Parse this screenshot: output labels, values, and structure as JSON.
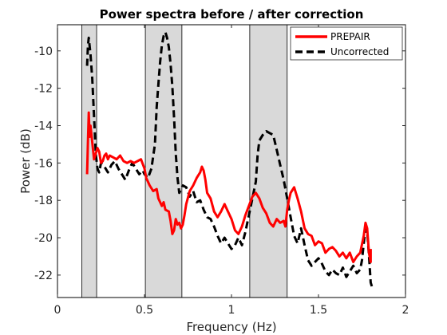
{
  "chart_data": {
    "type": "line",
    "title": "Power spectra before / after correction",
    "xlabel": "Frequency (Hz)",
    "ylabel": "Power (dB)",
    "xlim": [
      0,
      2
    ],
    "ylim": [
      -23.2,
      -8.6
    ],
    "x_ticks": [
      0,
      0.5,
      1,
      1.5,
      2
    ],
    "x_tick_labels": [
      "0",
      "0.5",
      "1",
      "1.5",
      "2"
    ],
    "y_ticks": [
      -10,
      -12,
      -14,
      -16,
      -18,
      -20,
      -22
    ],
    "y_tick_labels": [
      "-10",
      "-12",
      "-14",
      "-16",
      "-18",
      "-20",
      "-22"
    ],
    "grid": false,
    "legend_position": "top-right",
    "shaded_bands": [
      {
        "x0": 0.14,
        "x1": 0.225
      },
      {
        "x0": 0.505,
        "x1": 0.715
      },
      {
        "x0": 1.105,
        "x1": 1.32
      }
    ],
    "series": [
      {
        "name": "PREPAIR",
        "color": "#ff0000",
        "style": "solid",
        "points": [
          [
            0.17,
            -16.6
          ],
          [
            0.175,
            -14.8
          ],
          [
            0.18,
            -13.3
          ],
          [
            0.185,
            -14.6
          ],
          [
            0.19,
            -14.0
          ],
          [
            0.2,
            -14.9
          ],
          [
            0.21,
            -15.8
          ],
          [
            0.22,
            -15.5
          ],
          [
            0.23,
            -15.2
          ],
          [
            0.24,
            -15.4
          ],
          [
            0.25,
            -16.0
          ],
          [
            0.26,
            -15.9
          ],
          [
            0.27,
            -15.6
          ],
          [
            0.28,
            -15.5
          ],
          [
            0.29,
            -15.8
          ],
          [
            0.3,
            -15.6
          ],
          [
            0.32,
            -15.7
          ],
          [
            0.34,
            -15.8
          ],
          [
            0.36,
            -15.6
          ],
          [
            0.38,
            -15.9
          ],
          [
            0.4,
            -16.0
          ],
          [
            0.42,
            -15.9
          ],
          [
            0.44,
            -16.0
          ],
          [
            0.46,
            -15.9
          ],
          [
            0.48,
            -15.8
          ],
          [
            0.5,
            -16.3
          ],
          [
            0.51,
            -16.8
          ],
          [
            0.53,
            -17.2
          ],
          [
            0.55,
            -17.5
          ],
          [
            0.57,
            -17.4
          ],
          [
            0.58,
            -17.9
          ],
          [
            0.6,
            -18.3
          ],
          [
            0.61,
            -18.1
          ],
          [
            0.62,
            -18.5
          ],
          [
            0.64,
            -18.6
          ],
          [
            0.65,
            -19.1
          ],
          [
            0.66,
            -19.8
          ],
          [
            0.67,
            -19.6
          ],
          [
            0.68,
            -19.0
          ],
          [
            0.69,
            -19.3
          ],
          [
            0.7,
            -19.2
          ],
          [
            0.71,
            -19.5
          ],
          [
            0.72,
            -19.3
          ],
          [
            0.73,
            -18.8
          ],
          [
            0.74,
            -18.2
          ],
          [
            0.76,
            -17.5
          ],
          [
            0.78,
            -17.2
          ],
          [
            0.8,
            -16.8
          ],
          [
            0.82,
            -16.5
          ],
          [
            0.83,
            -16.2
          ],
          [
            0.84,
            -16.4
          ],
          [
            0.85,
            -16.9
          ],
          [
            0.86,
            -17.6
          ],
          [
            0.88,
            -17.9
          ],
          [
            0.9,
            -18.6
          ],
          [
            0.92,
            -18.9
          ],
          [
            0.94,
            -18.6
          ],
          [
            0.96,
            -18.2
          ],
          [
            0.98,
            -18.6
          ],
          [
            1.0,
            -19.0
          ],
          [
            1.02,
            -19.6
          ],
          [
            1.04,
            -19.8
          ],
          [
            1.06,
            -19.4
          ],
          [
            1.08,
            -18.8
          ],
          [
            1.1,
            -18.3
          ],
          [
            1.12,
            -17.8
          ],
          [
            1.14,
            -17.6
          ],
          [
            1.16,
            -17.9
          ],
          [
            1.18,
            -18.4
          ],
          [
            1.2,
            -18.7
          ],
          [
            1.22,
            -19.2
          ],
          [
            1.24,
            -19.4
          ],
          [
            1.26,
            -19.0
          ],
          [
            1.28,
            -19.2
          ],
          [
            1.3,
            -19.1
          ],
          [
            1.31,
            -19.4
          ],
          [
            1.32,
            -18.5
          ],
          [
            1.33,
            -18.0
          ],
          [
            1.34,
            -17.6
          ],
          [
            1.36,
            -17.3
          ],
          [
            1.38,
            -17.9
          ],
          [
            1.4,
            -18.6
          ],
          [
            1.42,
            -19.5
          ],
          [
            1.44,
            -19.8
          ],
          [
            1.46,
            -19.9
          ],
          [
            1.48,
            -20.4
          ],
          [
            1.5,
            -20.2
          ],
          [
            1.52,
            -20.3
          ],
          [
            1.54,
            -20.8
          ],
          [
            1.56,
            -20.6
          ],
          [
            1.58,
            -20.5
          ],
          [
            1.6,
            -20.7
          ],
          [
            1.62,
            -21.0
          ],
          [
            1.64,
            -20.8
          ],
          [
            1.66,
            -21.1
          ],
          [
            1.68,
            -20.8
          ],
          [
            1.7,
            -21.3
          ],
          [
            1.72,
            -21.0
          ],
          [
            1.74,
            -20.8
          ],
          [
            1.76,
            -19.9
          ],
          [
            1.77,
            -19.2
          ],
          [
            1.78,
            -19.5
          ],
          [
            1.79,
            -20.8
          ],
          [
            1.8,
            -21.3
          ],
          [
            1.8,
            -20.6
          ]
        ]
      },
      {
        "name": "Uncorrected",
        "color": "#000000",
        "style": "dashed",
        "points": [
          [
            0.17,
            -10.8
          ],
          [
            0.175,
            -9.7
          ],
          [
            0.18,
            -9.3
          ],
          [
            0.19,
            -10.2
          ],
          [
            0.2,
            -11.5
          ],
          [
            0.21,
            -13.5
          ],
          [
            0.22,
            -15.5
          ],
          [
            0.23,
            -16.3
          ],
          [
            0.24,
            -16.5
          ],
          [
            0.25,
            -16.0
          ],
          [
            0.27,
            -16.2
          ],
          [
            0.29,
            -16.5
          ],
          [
            0.31,
            -16.1
          ],
          [
            0.33,
            -15.9
          ],
          [
            0.35,
            -16.3
          ],
          [
            0.37,
            -16.6
          ],
          [
            0.39,
            -16.9
          ],
          [
            0.41,
            -16.4
          ],
          [
            0.43,
            -16.0
          ],
          [
            0.45,
            -16.3
          ],
          [
            0.47,
            -16.6
          ],
          [
            0.49,
            -16.4
          ],
          [
            0.5,
            -16.6
          ],
          [
            0.52,
            -16.8
          ],
          [
            0.54,
            -16.3
          ],
          [
            0.56,
            -15.0
          ],
          [
            0.57,
            -13.0
          ],
          [
            0.58,
            -11.8
          ],
          [
            0.59,
            -10.6
          ],
          [
            0.6,
            -9.7
          ],
          [
            0.61,
            -9.2
          ],
          [
            0.62,
            -9.0
          ],
          [
            0.63,
            -9.3
          ],
          [
            0.64,
            -9.8
          ],
          [
            0.65,
            -10.7
          ],
          [
            0.66,
            -11.9
          ],
          [
            0.67,
            -13.6
          ],
          [
            0.68,
            -15.5
          ],
          [
            0.69,
            -16.8
          ],
          [
            0.7,
            -17.6
          ],
          [
            0.72,
            -17.2
          ],
          [
            0.74,
            -17.3
          ],
          [
            0.76,
            -17.8
          ],
          [
            0.78,
            -17.5
          ],
          [
            0.8,
            -18.1
          ],
          [
            0.82,
            -18.0
          ],
          [
            0.84,
            -18.5
          ],
          [
            0.86,
            -18.9
          ],
          [
            0.88,
            -19.0
          ],
          [
            0.9,
            -19.4
          ],
          [
            0.92,
            -19.9
          ],
          [
            0.94,
            -20.3
          ],
          [
            0.96,
            -20.0
          ],
          [
            0.98,
            -20.3
          ],
          [
            1.0,
            -20.6
          ],
          [
            1.02,
            -20.4
          ],
          [
            1.04,
            -20.0
          ],
          [
            1.06,
            -20.4
          ],
          [
            1.08,
            -19.7
          ],
          [
            1.1,
            -18.8
          ],
          [
            1.12,
            -17.9
          ],
          [
            1.14,
            -17.0
          ],
          [
            1.15,
            -15.6
          ],
          [
            1.16,
            -14.8
          ],
          [
            1.18,
            -14.5
          ],
          [
            1.2,
            -14.3
          ],
          [
            1.22,
            -14.4
          ],
          [
            1.24,
            -14.5
          ],
          [
            1.26,
            -15.3
          ],
          [
            1.28,
            -16.1
          ],
          [
            1.3,
            -16.9
          ],
          [
            1.32,
            -17.9
          ],
          [
            1.34,
            -18.9
          ],
          [
            1.36,
            -19.9
          ],
          [
            1.38,
            -20.3
          ],
          [
            1.4,
            -19.5
          ],
          [
            1.42,
            -20.4
          ],
          [
            1.44,
            -21.2
          ],
          [
            1.46,
            -21.5
          ],
          [
            1.48,
            -21.3
          ],
          [
            1.5,
            -21.1
          ],
          [
            1.52,
            -21.4
          ],
          [
            1.54,
            -21.8
          ],
          [
            1.56,
            -22.0
          ],
          [
            1.58,
            -21.7
          ],
          [
            1.6,
            -21.9
          ],
          [
            1.62,
            -22.0
          ],
          [
            1.64,
            -21.6
          ],
          [
            1.66,
            -22.1
          ],
          [
            1.68,
            -21.8
          ],
          [
            1.7,
            -21.5
          ],
          [
            1.72,
            -21.9
          ],
          [
            1.74,
            -21.7
          ],
          [
            1.75,
            -21.2
          ],
          [
            1.76,
            -20.3
          ],
          [
            1.77,
            -19.5
          ],
          [
            1.78,
            -19.7
          ],
          [
            1.79,
            -20.9
          ],
          [
            1.8,
            -22.4
          ],
          [
            1.81,
            -22.7
          ]
        ]
      }
    ]
  }
}
